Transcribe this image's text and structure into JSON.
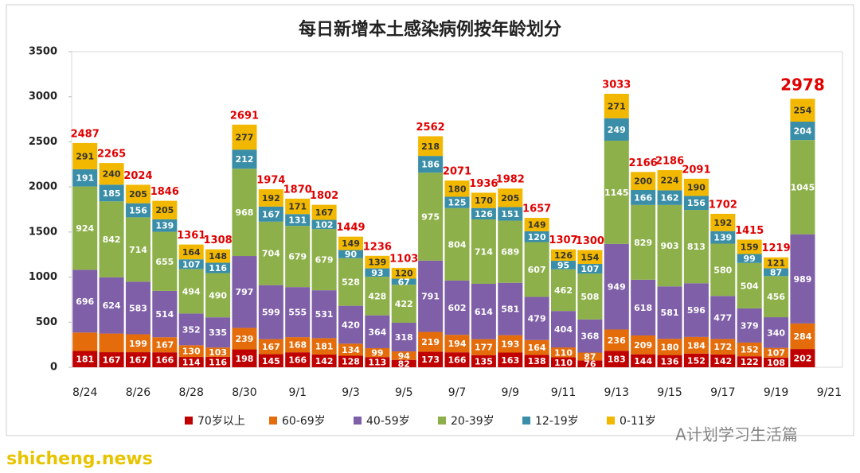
{
  "chart_data": {
    "type": "stacked_bar",
    "title": "每日新增本土感染病例按年龄划分",
    "categories": [
      "8/24",
      null,
      "8/26",
      null,
      "8/28",
      null,
      "8/30",
      null,
      "9/1",
      null,
      "9/3",
      null,
      "9/5",
      null,
      "9/7",
      null,
      "9/9",
      null,
      "9/11",
      null,
      "9/13",
      null,
      "9/15",
      null,
      "9/17",
      null,
      "9/19",
      null,
      "9/21"
    ],
    "series": [
      {
        "name": "70岁以上",
        "color": "#c00000",
        "values": [
          181,
          167,
          167,
          166,
          114,
          116,
          198,
          145,
          166,
          142,
          128,
          113,
          82,
          173,
          166,
          135,
          163,
          138,
          110,
          76,
          183,
          144,
          136,
          152,
          142,
          122,
          108,
          202,
          null
        ]
      },
      {
        "name": "60-69岁",
        "color": "#e46c0a",
        "values": [
          204,
          207,
          199,
          167,
          130,
          103,
          239,
          167,
          168,
          181,
          134,
          99,
          94,
          219,
          194,
          177,
          193,
          164,
          110,
          87,
          236,
          209,
          180,
          184,
          172,
          152,
          107,
          284,
          null
        ],
        "value_labels": [
          null,
          null,
          "199",
          "167",
          "130",
          "103",
          "239",
          "167",
          "168",
          "181",
          "134",
          "99",
          "94",
          "219",
          "194",
          "177",
          "193",
          "164",
          "110",
          "87",
          "236",
          "209",
          "180",
          "184",
          "172",
          "152",
          "107",
          "284",
          null
        ]
      },
      {
        "name": "40-59岁",
        "color": "#7f5fa8",
        "values": [
          696,
          624,
          583,
          514,
          352,
          335,
          797,
          599,
          555,
          531,
          420,
          364,
          318,
          791,
          602,
          614,
          581,
          479,
          404,
          368,
          949,
          618,
          581,
          596,
          477,
          379,
          340,
          989,
          null
        ]
      },
      {
        "name": "20-39岁",
        "color": "#8db04a",
        "values": [
          924,
          842,
          714,
          655,
          494,
          490,
          968,
          704,
          679,
          679,
          528,
          428,
          422,
          975,
          804,
          714,
          689,
          607,
          462,
          508,
          1145,
          829,
          903,
          813,
          580,
          504,
          456,
          1045,
          null
        ]
      },
      {
        "name": "12-19岁",
        "color": "#3a8ea8",
        "values": [
          191,
          185,
          156,
          139,
          107,
          116,
          212,
          167,
          131,
          102,
          90,
          93,
          67,
          186,
          125,
          126,
          151,
          120,
          95,
          107,
          249,
          166,
          162,
          156,
          139,
          99,
          87,
          204,
          null
        ]
      },
      {
        "name": "0-11岁",
        "color": "#f2b800",
        "values": [
          291,
          240,
          205,
          205,
          164,
          148,
          277,
          192,
          171,
          167,
          149,
          139,
          120,
          218,
          180,
          170,
          205,
          149,
          126,
          154,
          271,
          200,
          224,
          190,
          192,
          159,
          121,
          254,
          null
        ]
      }
    ],
    "totals": [
      2487,
      2265,
      2024,
      1846,
      1361,
      1308,
      2691,
      1974,
      1870,
      1802,
      1449,
      1236,
      1103,
      2562,
      2071,
      1936,
      1982,
      1657,
      1307,
      1300,
      3033,
      2166,
      2186,
      2091,
      1702,
      1415,
      1219,
      2978,
      null
    ],
    "ylim": [
      0,
      3500
    ],
    "yticks": [
      0,
      500,
      1000,
      1500,
      2000,
      2500,
      3000,
      3500
    ],
    "annotations": [
      "A计划学习生活篇",
      "shicheng.news"
    ]
  }
}
